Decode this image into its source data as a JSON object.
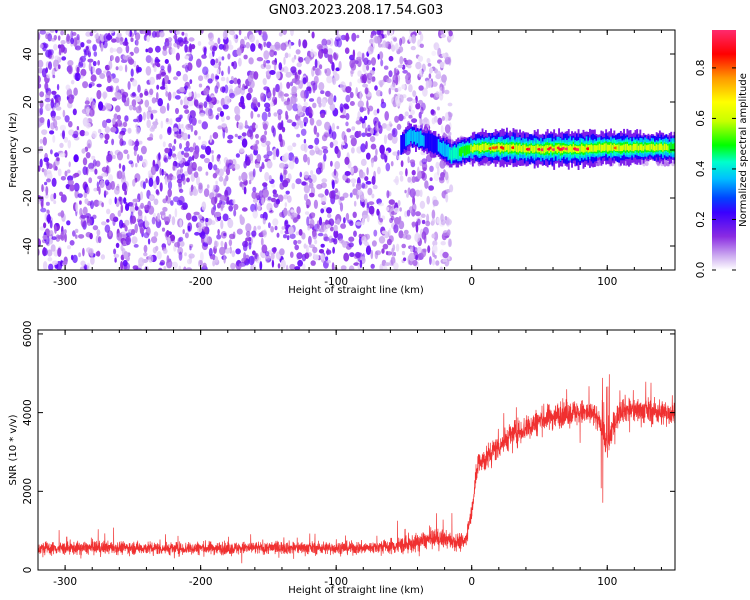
{
  "title": "GN03.2023.208.17.54.G03",
  "chart_data": [
    {
      "type": "heatmap",
      "xlabel": "Height of straight line (km)",
      "ylabel": "Frequency (Hz)",
      "xlim": [
        -320,
        150
      ],
      "ylim": [
        -50,
        50
      ],
      "xticks": [
        -300,
        -200,
        -100,
        0,
        100
      ],
      "yticks": [
        -40,
        -20,
        0,
        20,
        40
      ],
      "colorbar": {
        "label": "Normalized spectral amplitude",
        "range": [
          0.0,
          0.95
        ],
        "ticks": [
          0.0,
          0.2,
          0.4,
          0.6,
          0.8
        ],
        "colormap": [
          "#ffffff",
          "#ccaaf0",
          "#8a2be2",
          "#5a00ff",
          "#0000ff",
          "#00bfff",
          "#00ffcc",
          "#00ff00",
          "#c8ff00",
          "#ffff00",
          "#ff9900",
          "#ff0000",
          "#ff2a6e"
        ]
      },
      "noise_region": {
        "x_range": [
          -320,
          -20
        ],
        "frequency_range": [
          -50,
          50
        ],
        "typical_amplitude": 0.15
      },
      "signal_track": {
        "points": [
          {
            "x": -52,
            "frequency": 2,
            "amplitude": 0.3
          },
          {
            "x": -45,
            "frequency": 6,
            "amplitude": 0.4
          },
          {
            "x": -35,
            "frequency": 4,
            "amplitude": 0.35
          },
          {
            "x": -25,
            "frequency": 2,
            "amplitude": 0.35
          },
          {
            "x": -15,
            "frequency": -2,
            "amplitude": 0.45
          },
          {
            "x": -5,
            "frequency": 0,
            "amplitude": 0.55
          },
          {
            "x": 5,
            "frequency": 1,
            "amplitude": 0.7
          },
          {
            "x": 20,
            "frequency": 1,
            "amplitude": 0.85
          },
          {
            "x": 40,
            "frequency": 0.5,
            "amplitude": 0.88
          },
          {
            "x": 60,
            "frequency": 0.5,
            "amplitude": 0.9
          },
          {
            "x": 80,
            "frequency": 0.5,
            "amplitude": 0.9
          },
          {
            "x": 95,
            "frequency": 1,
            "amplitude": 0.75
          },
          {
            "x": 110,
            "frequency": 1,
            "amplitude": 0.8
          },
          {
            "x": 130,
            "frequency": 1,
            "amplitude": 0.65
          },
          {
            "x": 150,
            "frequency": 1,
            "amplitude": 0.6
          }
        ]
      }
    },
    {
      "type": "line",
      "xlabel": "Height of straight line (km)",
      "ylabel": "SNR (10 * v/v)",
      "xlim": [
        -320,
        150
      ],
      "ylim": [
        0,
        6100
      ],
      "xticks": [
        -300,
        -200,
        -100,
        0,
        100
      ],
      "yticks": [
        0,
        2000,
        4000,
        6000
      ],
      "color": "#f03030",
      "series": [
        {
          "x": [
            -320,
            -300,
            -280,
            -260,
            -240,
            -220,
            -200,
            -180,
            -160,
            -140,
            -120,
            -100,
            -80,
            -60,
            -45,
            -35,
            -25,
            -15,
            -5,
            0,
            5,
            10,
            15,
            20,
            25,
            30,
            40,
            50,
            60,
            70,
            80,
            90,
            95,
            100,
            105,
            110,
            120,
            130,
            140,
            150
          ],
          "values": [
            550,
            550,
            560,
            570,
            560,
            540,
            560,
            550,
            560,
            570,
            560,
            560,
            560,
            600,
            650,
            750,
            800,
            750,
            700,
            1500,
            2800,
            2800,
            3000,
            3150,
            3300,
            3450,
            3600,
            3800,
            3900,
            4000,
            4000,
            3950,
            3700,
            3200,
            3700,
            4100,
            4050,
            4050,
            4000,
            4000
          ]
        }
      ]
    }
  ]
}
